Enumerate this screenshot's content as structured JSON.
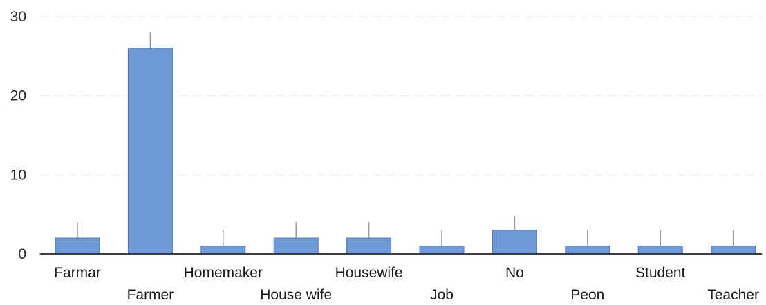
{
  "chart_data": {
    "type": "bar",
    "title": "",
    "xlabel": "",
    "ylabel": "",
    "ylim": [
      0,
      30
    ],
    "yticks": [
      0,
      10,
      20,
      30
    ],
    "grid": true,
    "legend": "none",
    "categories": [
      "Farmar",
      "Farmer",
      "Homemaker",
      "House wife",
      "Housewife",
      "Job",
      "No",
      "Peon",
      "Student",
      "Teacher"
    ],
    "values": [
      2,
      26,
      1,
      2,
      2,
      1,
      3,
      1,
      1,
      1
    ],
    "error_upper": [
      4,
      28,
      3,
      4,
      4,
      3,
      4.8,
      3,
      3,
      3
    ],
    "colors": {
      "bar": "#6f98d8",
      "bar_edge": "#4f79bd",
      "error": "#9a9a9a",
      "axis": "#3a3a3a",
      "grid": "#e9eaed"
    }
  }
}
